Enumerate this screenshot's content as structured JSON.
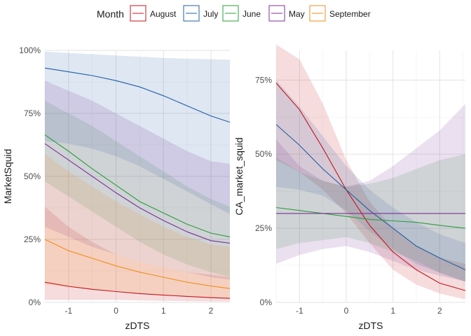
{
  "legend": {
    "title": "Month",
    "position": "top",
    "entries": [
      {
        "label": "August",
        "color": "#c4161c"
      },
      {
        "label": "July",
        "color": "#1f5fa6"
      },
      {
        "label": "June",
        "color": "#2a9d3a"
      },
      {
        "label": "May",
        "color": "#7b3294"
      },
      {
        "label": "September",
        "color": "#f28e1c"
      }
    ]
  },
  "chart_data": [
    {
      "type": "line",
      "title": "",
      "xlabel": "zDTS",
      "ylabel": "MarketSquid",
      "xlim": [
        -1.5,
        2.4
      ],
      "ylim": [
        0,
        1
      ],
      "x_ticks": [
        -1,
        0,
        1,
        2
      ],
      "x_tick_labels": [
        "-1",
        "0",
        "1",
        "2"
      ],
      "y_ticks": [
        0,
        0.25,
        0.5,
        0.75,
        1.0
      ],
      "y_tick_labels": [
        "0%",
        "25%",
        "50%",
        "75%",
        "100%"
      ],
      "grid": true,
      "ribbons": true,
      "x": [
        -1.5,
        -1.0,
        -0.5,
        0.0,
        0.5,
        1.0,
        1.5,
        2.0,
        2.4
      ],
      "series": [
        {
          "name": "August",
          "color": "#c4161c",
          "values": [
            0.08,
            0.064,
            0.052,
            0.043,
            0.035,
            0.029,
            0.024,
            0.019,
            0.016
          ],
          "lower": [
            0.01,
            0.01,
            0.01,
            0.01,
            0.008,
            0.006,
            0.005,
            0.004,
            0.003
          ],
          "upper": [
            0.38,
            0.3,
            0.24,
            0.19,
            0.16,
            0.14,
            0.12,
            0.11,
            0.1
          ]
        },
        {
          "name": "July",
          "color": "#1f5fa6",
          "values": [
            0.93,
            0.915,
            0.9,
            0.88,
            0.855,
            0.82,
            0.78,
            0.74,
            0.715
          ],
          "lower": [
            0.64,
            0.63,
            0.61,
            0.58,
            0.54,
            0.49,
            0.44,
            0.39,
            0.35
          ],
          "upper": [
            0.995,
            0.99,
            0.985,
            0.98,
            0.975,
            0.97,
            0.967,
            0.965,
            0.963
          ]
        },
        {
          "name": "June",
          "color": "#2a9d3a",
          "values": [
            0.665,
            0.6,
            0.53,
            0.465,
            0.4,
            0.355,
            0.31,
            0.275,
            0.26
          ],
          "lower": [
            0.48,
            0.42,
            0.36,
            0.3,
            0.24,
            0.19,
            0.15,
            0.12,
            0.1
          ],
          "upper": [
            0.8,
            0.75,
            0.7,
            0.64,
            0.58,
            0.52,
            0.46,
            0.41,
            0.38
          ]
        },
        {
          "name": "May",
          "color": "#7b3294",
          "values": [
            0.63,
            0.565,
            0.5,
            0.435,
            0.375,
            0.325,
            0.28,
            0.245,
            0.235
          ],
          "lower": [
            0.3,
            0.26,
            0.22,
            0.19,
            0.16,
            0.14,
            0.12,
            0.1,
            0.09
          ],
          "upper": [
            0.88,
            0.84,
            0.8,
            0.75,
            0.7,
            0.65,
            0.6,
            0.56,
            0.55
          ]
        },
        {
          "name": "September",
          "color": "#f28e1c",
          "values": [
            0.25,
            0.205,
            0.175,
            0.145,
            0.12,
            0.1,
            0.08,
            0.065,
            0.055
          ],
          "lower": [
            0.07,
            0.06,
            0.05,
            0.045,
            0.035,
            0.03,
            0.025,
            0.02,
            0.018
          ],
          "upper": [
            0.59,
            0.52,
            0.46,
            0.4,
            0.35,
            0.3,
            0.26,
            0.23,
            0.22
          ]
        }
      ]
    },
    {
      "type": "line",
      "title": "",
      "xlabel": "zDTS",
      "ylabel": "CA_market_squid",
      "xlim": [
        -1.5,
        2.55
      ],
      "ylim": [
        0,
        0.85
      ],
      "x_ticks": [
        -1,
        0,
        1,
        2
      ],
      "x_tick_labels": [
        "-1",
        "0",
        "1",
        "2"
      ],
      "y_ticks": [
        0,
        0.25,
        0.5,
        0.75
      ],
      "y_tick_labels": [
        "0%",
        "25%",
        "50%",
        "75%"
      ],
      "grid": true,
      "ribbons": true,
      "x": [
        -1.5,
        -1.0,
        -0.5,
        0.0,
        0.5,
        1.0,
        1.5,
        2.0,
        2.55
      ],
      "series": [
        {
          "name": "August",
          "color": "#c4161c",
          "values": [
            0.74,
            0.65,
            0.52,
            0.38,
            0.26,
            0.17,
            0.11,
            0.065,
            0.04
          ],
          "lower": [
            0.48,
            0.44,
            0.38,
            0.3,
            0.2,
            0.11,
            0.06,
            0.03,
            0.01
          ],
          "upper": [
            0.87,
            0.82,
            0.67,
            0.48,
            0.34,
            0.25,
            0.19,
            0.15,
            0.13
          ]
        },
        {
          "name": "July",
          "color": "#1f5fa6",
          "values": [
            0.6,
            0.53,
            0.45,
            0.38,
            0.31,
            0.25,
            0.19,
            0.15,
            0.11
          ],
          "lower": [
            0.39,
            0.38,
            0.36,
            0.31,
            0.24,
            0.18,
            0.13,
            0.1,
            0.07
          ],
          "upper": [
            0.75,
            0.66,
            0.56,
            0.46,
            0.38,
            0.32,
            0.27,
            0.23,
            0.2
          ]
        },
        {
          "name": "June",
          "color": "#2a9d3a",
          "values": [
            0.32,
            0.31,
            0.3,
            0.29,
            0.28,
            0.275,
            0.27,
            0.26,
            0.25
          ],
          "lower": [
            0.18,
            0.2,
            0.21,
            0.22,
            0.2,
            0.17,
            0.14,
            0.1,
            0.07
          ],
          "upper": [
            0.49,
            0.44,
            0.41,
            0.39,
            0.4,
            0.42,
            0.45,
            0.48,
            0.5
          ]
        },
        {
          "name": "May",
          "color": "#7b3294",
          "values": [
            0.3,
            0.3,
            0.3,
            0.3,
            0.3,
            0.3,
            0.3,
            0.3,
            0.3
          ],
          "lower": [
            0.13,
            0.16,
            0.18,
            0.19,
            0.17,
            0.14,
            0.11,
            0.09,
            0.07
          ],
          "upper": [
            0.55,
            0.46,
            0.41,
            0.39,
            0.41,
            0.46,
            0.52,
            0.58,
            0.67
          ]
        }
      ]
    }
  ]
}
